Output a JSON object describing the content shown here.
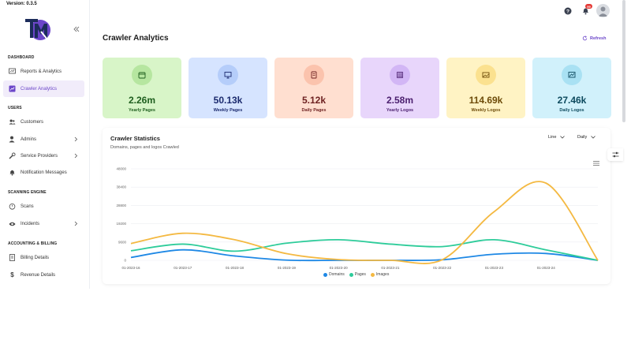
{
  "app": {
    "version": "Version: 0.3.5"
  },
  "sidebar": {
    "sections": [
      {
        "title": "DASHBOARD",
        "items": [
          {
            "label": "Reports & Analytics",
            "icon": "analytics-icon",
            "active": false
          },
          {
            "label": "Crawler Analytics",
            "icon": "chart-icon",
            "active": true
          }
        ]
      },
      {
        "title": "USERS",
        "items": [
          {
            "label": "Customers",
            "icon": "users-icon"
          },
          {
            "label": "Admins",
            "icon": "admin-icon",
            "chevron": true
          },
          {
            "label": "Service Providers",
            "icon": "tools-icon",
            "chevron": true
          },
          {
            "label": "Notification Messages",
            "icon": "bell-icon"
          }
        ]
      },
      {
        "title": "SCANNING ENGINE",
        "items": [
          {
            "label": "Scans",
            "icon": "timer-icon"
          },
          {
            "label": "Incidents",
            "icon": "eye-icon",
            "chevron": true
          }
        ]
      },
      {
        "title": "ACCOUNTING & BILLING",
        "items": [
          {
            "label": "Billing Details",
            "icon": "receipt-icon"
          },
          {
            "label": "Revenue Details",
            "icon": "dollar-icon"
          }
        ]
      }
    ]
  },
  "topbar": {
    "notification_count": "99"
  },
  "page": {
    "title": "Crawler Analytics",
    "refresh_label": "Refresh"
  },
  "stats": [
    {
      "value": "2.26m",
      "label": "Yearly Pages",
      "bg": "#d8f5c8",
      "circle": "#b6e6a0",
      "color": "#1e5e1e",
      "icon": "calendar-icon"
    },
    {
      "value": "50.13k",
      "label": "Weekly Pages",
      "bg": "#d6e4ff",
      "circle": "#b5cdfa",
      "color": "#1b2a6e",
      "icon": "monitor-icon"
    },
    {
      "value": "5.12k",
      "label": "Daily Pages",
      "bg": "#ffdfd0",
      "circle": "#fbc3ad",
      "color": "#6e2222",
      "icon": "page-icon"
    },
    {
      "value": "2.58m",
      "label": "Yearly Logos",
      "bg": "#e8d6fb",
      "circle": "#d2b6f5",
      "color": "#4a1e6e",
      "icon": "grid-icon"
    },
    {
      "value": "114.69k",
      "label": "Weekly Logos",
      "bg": "#fff3c4",
      "circle": "#fbe18f",
      "color": "#6e4c0a",
      "icon": "image-icon"
    },
    {
      "value": "27.46k",
      "label": "Daily Logos",
      "bg": "#d1f1fb",
      "circle": "#a9e1f3",
      "color": "#0d4a5e",
      "icon": "photo-icon"
    }
  ],
  "chart_panel": {
    "title": "Crawler Statistics",
    "subtitle": "Domains, pages and logos Crawled",
    "type_select": "Line",
    "period_select": "Daily"
  },
  "chart_data": {
    "type": "line",
    "x": [
      "01-2023-16",
      "01-2023-17",
      "01-2023-18",
      "01-2023-19",
      "01-2023-20",
      "01-2023-21",
      "01-2023-22",
      "01-2023-23",
      "01-2023-24",
      ""
    ],
    "x_tick_labels": [
      "01-2023-16",
      "01-2023-17",
      "01-2023-18",
      "01-2023-19",
      "01-2023-20",
      "01-2023-21",
      "01-2023-22",
      "01-2023-23",
      "01-2023-24"
    ],
    "y_ticks": [
      0,
      9600,
      19200,
      28800,
      38400,
      48000
    ],
    "y_tick_labels": [
      "0",
      "9600",
      "19200",
      "28800",
      "38400",
      "48000"
    ],
    "ylim": [
      0,
      48000
    ],
    "grid": true,
    "legend": "bottom",
    "series": [
      {
        "name": "Domains",
        "color": "#1e88e5",
        "values": [
          1500,
          5500,
          2300,
          100,
          0,
          0,
          300,
          3200,
          3600,
          0
        ]
      },
      {
        "name": "Pages",
        "color": "#2ecc9a",
        "values": [
          5000,
          8500,
          4800,
          9000,
          10800,
          8500,
          7200,
          10800,
          5500,
          0
        ]
      },
      {
        "name": "Images",
        "color": "#f4b942",
        "values": [
          8800,
          14200,
          10800,
          3500,
          400,
          0,
          300,
          25500,
          40500,
          0
        ]
      }
    ]
  }
}
